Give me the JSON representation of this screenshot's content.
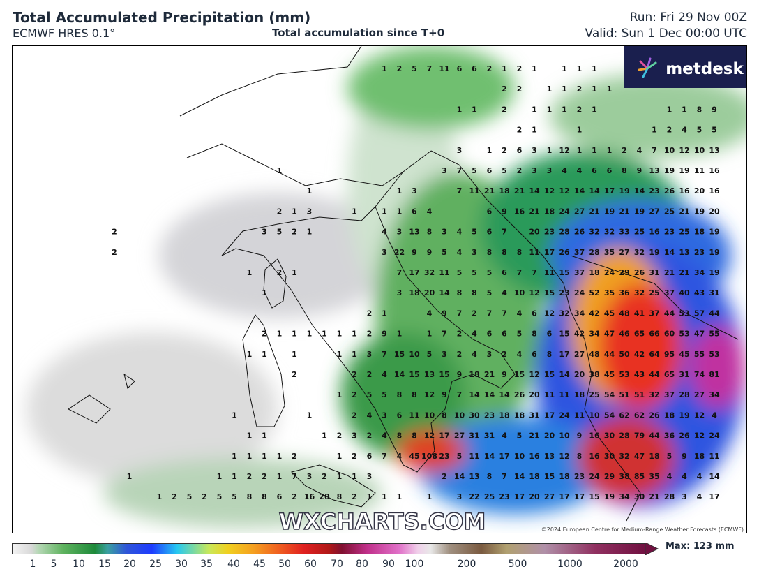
{
  "header": {
    "title": "Total Accumulated Precipitation (mm)",
    "model": "ECMWF HRES 0.1°",
    "subtitle": "Total accumulation since T+0",
    "run": "Run: Fri 29 Nov 00Z",
    "valid": "Valid: Sun 1 Dec 00:00 UTC"
  },
  "map": {
    "logo": "metdesk",
    "watermark": "WXCHARTS.COM",
    "copyright": "©2024 European Centre for Medium-Range Weather Forecasts (ECMWF)",
    "grid_values": [
      [
        null,
        null,
        null,
        null,
        null,
        null,
        null,
        null,
        null,
        null,
        null,
        null,
        null,
        null,
        null,
        null,
        null,
        null,
        1,
        2,
        5,
        7,
        11,
        6,
        6,
        2,
        1,
        2,
        1,
        null,
        1,
        1,
        1,
        null,
        null,
        null,
        null,
        null,
        null,
        null,
        null
      ],
      [
        null,
        null,
        null,
        null,
        null,
        null,
        null,
        null,
        null,
        null,
        null,
        null,
        null,
        null,
        null,
        null,
        null,
        null,
        null,
        null,
        null,
        null,
        null,
        null,
        null,
        null,
        2,
        2,
        null,
        1,
        1,
        2,
        1,
        1,
        null,
        null,
        null,
        null,
        null,
        null,
        null
      ],
      [
        null,
        null,
        null,
        null,
        null,
        null,
        null,
        null,
        null,
        null,
        null,
        null,
        null,
        null,
        null,
        null,
        null,
        null,
        null,
        null,
        null,
        null,
        null,
        1,
        1,
        null,
        2,
        null,
        1,
        1,
        1,
        2,
        1,
        null,
        null,
        null,
        null,
        1,
        1,
        8,
        9
      ],
      [
        null,
        null,
        null,
        null,
        null,
        null,
        null,
        null,
        null,
        null,
        null,
        null,
        null,
        null,
        null,
        null,
        null,
        null,
        null,
        null,
        null,
        null,
        null,
        null,
        null,
        null,
        null,
        2,
        1,
        null,
        null,
        1,
        null,
        null,
        null,
        null,
        1,
        2,
        4,
        5,
        5
      ],
      [
        null,
        null,
        null,
        null,
        null,
        null,
        null,
        null,
        null,
        null,
        null,
        null,
        null,
        null,
        null,
        null,
        null,
        null,
        null,
        null,
        null,
        null,
        null,
        3,
        null,
        1,
        2,
        6,
        3,
        1,
        12,
        1,
        1,
        1,
        2,
        4,
        7,
        10,
        12,
        10,
        13
      ],
      [
        null,
        null,
        null,
        null,
        null,
        null,
        null,
        null,
        null,
        null,
        null,
        1,
        null,
        null,
        null,
        null,
        null,
        null,
        null,
        null,
        null,
        null,
        3,
        7,
        5,
        6,
        5,
        2,
        3,
        3,
        4,
        4,
        6,
        6,
        8,
        9,
        13,
        19,
        19,
        11,
        16
      ],
      [
        null,
        null,
        null,
        null,
        null,
        null,
        null,
        null,
        null,
        null,
        null,
        null,
        null,
        1,
        null,
        null,
        null,
        null,
        null,
        1,
        3,
        null,
        null,
        7,
        11,
        21,
        18,
        21,
        14,
        12,
        12,
        14,
        14,
        17,
        19,
        14,
        23,
        26,
        16,
        20,
        16
      ],
      [
        null,
        null,
        null,
        null,
        null,
        null,
        null,
        null,
        null,
        null,
        null,
        2,
        1,
        3,
        null,
        null,
        1,
        null,
        1,
        1,
        6,
        4,
        null,
        null,
        null,
        6,
        9,
        16,
        21,
        18,
        24,
        27,
        21,
        19,
        21,
        19,
        27,
        25,
        21,
        19,
        20
      ],
      [
        2,
        null,
        null,
        null,
        null,
        null,
        null,
        null,
        null,
        null,
        3,
        5,
        2,
        1,
        null,
        null,
        null,
        null,
        4,
        3,
        13,
        8,
        3,
        4,
        5,
        6,
        7,
        null,
        20,
        23,
        28,
        26,
        32,
        32,
        33,
        25,
        16,
        23,
        25,
        18,
        19
      ],
      [
        2,
        null,
        null,
        null,
        null,
        null,
        null,
        null,
        null,
        null,
        null,
        null,
        null,
        null,
        null,
        null,
        null,
        null,
        3,
        22,
        9,
        9,
        5,
        4,
        3,
        8,
        8,
        8,
        11,
        17,
        26,
        37,
        28,
        35,
        27,
        32,
        19,
        14,
        13,
        23,
        19
      ],
      [
        null,
        null,
        null,
        null,
        null,
        null,
        null,
        null,
        null,
        1,
        null,
        2,
        1,
        null,
        null,
        null,
        null,
        null,
        null,
        7,
        17,
        32,
        11,
        5,
        5,
        5,
        6,
        7,
        7,
        11,
        15,
        37,
        18,
        24,
        29,
        26,
        31,
        21,
        21,
        34,
        19
      ],
      [
        null,
        null,
        null,
        null,
        null,
        null,
        null,
        null,
        null,
        null,
        1,
        null,
        null,
        null,
        null,
        null,
        null,
        null,
        null,
        3,
        18,
        20,
        14,
        8,
        8,
        5,
        4,
        10,
        12,
        15,
        23,
        24,
        52,
        35,
        36,
        32,
        25,
        37,
        40,
        43,
        31
      ],
      [
        null,
        null,
        null,
        null,
        null,
        null,
        null,
        null,
        null,
        null,
        null,
        null,
        null,
        null,
        null,
        null,
        null,
        2,
        1,
        null,
        null,
        4,
        9,
        7,
        2,
        7,
        7,
        4,
        6,
        12,
        32,
        34,
        42,
        45,
        48,
        41,
        37,
        44,
        53,
        57,
        44
      ],
      [
        null,
        null,
        null,
        null,
        null,
        null,
        null,
        null,
        null,
        null,
        2,
        1,
        1,
        1,
        1,
        1,
        1,
        2,
        9,
        1,
        null,
        1,
        7,
        2,
        4,
        6,
        6,
        5,
        8,
        6,
        15,
        42,
        34,
        47,
        46,
        65,
        66,
        60,
        53,
        47,
        55
      ],
      [
        null,
        null,
        null,
        null,
        null,
        null,
        null,
        null,
        null,
        1,
        1,
        null,
        1,
        null,
        null,
        1,
        1,
        3,
        7,
        15,
        10,
        5,
        3,
        2,
        4,
        3,
        2,
        4,
        6,
        8,
        17,
        27,
        48,
        44,
        50,
        42,
        64,
        95,
        45,
        55,
        53
      ],
      [
        null,
        null,
        null,
        null,
        null,
        null,
        null,
        null,
        null,
        null,
        null,
        null,
        2,
        null,
        null,
        null,
        2,
        2,
        4,
        14,
        15,
        13,
        15,
        9,
        18,
        21,
        9,
        15,
        12,
        15,
        14,
        20,
        38,
        45,
        53,
        43,
        44,
        65,
        31,
        74,
        81
      ],
      [
        null,
        null,
        null,
        null,
        null,
        null,
        null,
        null,
        null,
        null,
        null,
        null,
        null,
        null,
        null,
        1,
        2,
        5,
        5,
        8,
        8,
        12,
        9,
        7,
        14,
        14,
        14,
        26,
        20,
        11,
        11,
        18,
        25,
        54,
        51,
        51,
        32,
        37,
        28,
        27,
        34
      ],
      [
        null,
        null,
        null,
        null,
        null,
        null,
        null,
        null,
        1,
        null,
        null,
        null,
        null,
        1,
        null,
        null,
        2,
        4,
        3,
        6,
        11,
        10,
        8,
        10,
        30,
        23,
        18,
        18,
        31,
        17,
        24,
        11,
        10,
        54,
        62,
        62,
        26,
        18,
        19,
        12,
        4
      ],
      [
        null,
        null,
        null,
        null,
        null,
        null,
        null,
        null,
        null,
        1,
        1,
        null,
        null,
        null,
        1,
        2,
        3,
        2,
        4,
        8,
        8,
        12,
        17,
        27,
        31,
        31,
        4,
        5,
        21,
        20,
        10,
        9,
        16,
        30,
        28,
        79,
        44,
        36,
        26,
        12,
        24
      ],
      [
        null,
        null,
        null,
        null,
        null,
        null,
        null,
        null,
        1,
        1,
        1,
        1,
        2,
        null,
        null,
        1,
        2,
        6,
        7,
        4,
        45,
        108,
        23,
        5,
        11,
        14,
        17,
        10,
        16,
        13,
        12,
        8,
        16,
        30,
        32,
        47,
        18,
        5,
        9,
        18,
        11
      ],
      [
        null,
        1,
        null,
        null,
        null,
        null,
        null,
        1,
        1,
        2,
        2,
        1,
        7,
        3,
        2,
        1,
        1,
        3,
        null,
        null,
        null,
        null,
        2,
        14,
        13,
        8,
        7,
        14,
        18,
        15,
        18,
        23,
        24,
        29,
        38,
        85,
        35,
        4,
        4,
        4,
        14
      ],
      [
        null,
        null,
        null,
        1,
        2,
        5,
        2,
        5,
        5,
        8,
        8,
        6,
        2,
        16,
        20,
        8,
        2,
        1,
        1,
        1,
        null,
        1,
        null,
        3,
        22,
        25,
        23,
        17,
        20,
        27,
        17,
        17,
        15,
        19,
        34,
        30,
        21,
        28,
        3,
        4,
        17
      ]
    ]
  },
  "legend": {
    "ticks": [
      1,
      5,
      10,
      15,
      20,
      25,
      30,
      35,
      40,
      45,
      50,
      60,
      70,
      80,
      90,
      100,
      200,
      500,
      1000,
      2000
    ],
    "max_label": "Max: 123 mm"
  }
}
